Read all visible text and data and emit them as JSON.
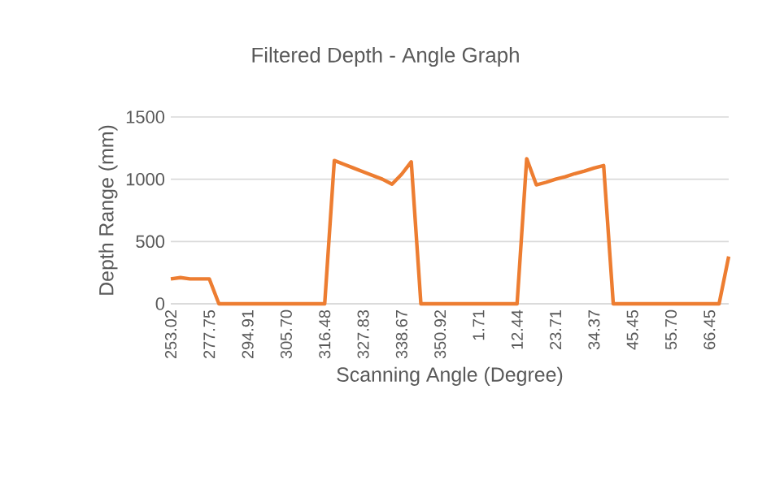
{
  "chart_data": {
    "type": "line",
    "title": "Filtered Depth - Angle Graph",
    "xlabel": "Scanning Angle (Degree)",
    "ylabel": "Depth Range (mm)",
    "categories": [
      "253.02",
      null,
      null,
      null,
      "277.75",
      null,
      null,
      null,
      "294.91",
      null,
      null,
      null,
      "305.70",
      null,
      null,
      null,
      "316.48",
      null,
      null,
      null,
      "327.83",
      null,
      null,
      null,
      "338.67",
      null,
      null,
      null,
      "350.92",
      null,
      null,
      null,
      "1.71",
      null,
      null,
      null,
      "12.44",
      null,
      null,
      null,
      "23.71",
      null,
      null,
      null,
      "34.37",
      null,
      null,
      null,
      "45.45",
      null,
      null,
      null,
      "55.70",
      null,
      null,
      null,
      "66.45",
      null,
      null
    ],
    "series": [
      {
        "color": "#ed7d31",
        "values": [
          200,
          210,
          200,
          200,
          200,
          0,
          0,
          0,
          0,
          0,
          0,
          0,
          0,
          0,
          0,
          0,
          0,
          1150,
          1120,
          1090,
          1060,
          1030,
          1000,
          960,
          1040,
          1140,
          0,
          0,
          0,
          0,
          0,
          0,
          0,
          0,
          0,
          0,
          0,
          1165,
          955,
          975,
          1000,
          1020,
          1045,
          1065,
          1090,
          1110,
          0,
          0,
          0,
          0,
          0,
          0,
          0,
          0,
          0,
          0,
          0,
          0,
          380
        ]
      }
    ],
    "ylim": [
      0,
      1500
    ],
    "yticks": [
      0,
      500,
      1000,
      1500
    ],
    "grid": "y",
    "marker": "none",
    "line_style": "solid"
  }
}
